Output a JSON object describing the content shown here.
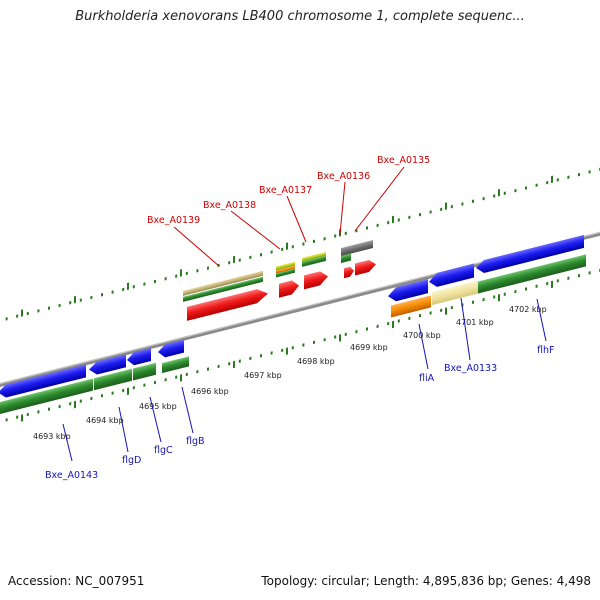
{
  "title": "Burkholderia xenovorans LB400 chromosome 1, complete sequenc...",
  "footer": {
    "accession": "Accession: NC_007951",
    "summary": "Topology: circular; Length: 4,895,836 bp; Genes: 4,498"
  },
  "colors": {
    "backbone": "#8a8a8a",
    "tick": "#2a7a1e",
    "forward_label": "#cc0000",
    "reverse_label": "#1414b4",
    "gene_forward": "#e31a1a",
    "gene_reverse": "#1818e0",
    "cds": "#2e8b2e"
  },
  "scale_labels": [
    {
      "text": "4693 kbp"
    },
    {
      "text": "4694 kbp"
    },
    {
      "text": "4695 kbp"
    },
    {
      "text": "4696 kbp"
    },
    {
      "text": "4697 kbp"
    },
    {
      "text": "4698 kbp"
    },
    {
      "text": "4699 kbp"
    },
    {
      "text": "4700 kbp"
    },
    {
      "text": "4701 kbp"
    },
    {
      "text": "4702 kbp"
    }
  ],
  "gene_labels_forward": [
    {
      "text": "Bxe_A0139"
    },
    {
      "text": "Bxe_A0138"
    },
    {
      "text": "Bxe_A0137"
    },
    {
      "text": "Bxe_A0136"
    },
    {
      "text": "Bxe_A0135"
    }
  ],
  "gene_labels_reverse": [
    {
      "text": "Bxe_A0143"
    },
    {
      "text": "flgD"
    },
    {
      "text": "flgC"
    },
    {
      "text": "flgB"
    },
    {
      "text": "fliA"
    },
    {
      "text": "Bxe_A0133"
    },
    {
      "text": "flhF"
    }
  ]
}
